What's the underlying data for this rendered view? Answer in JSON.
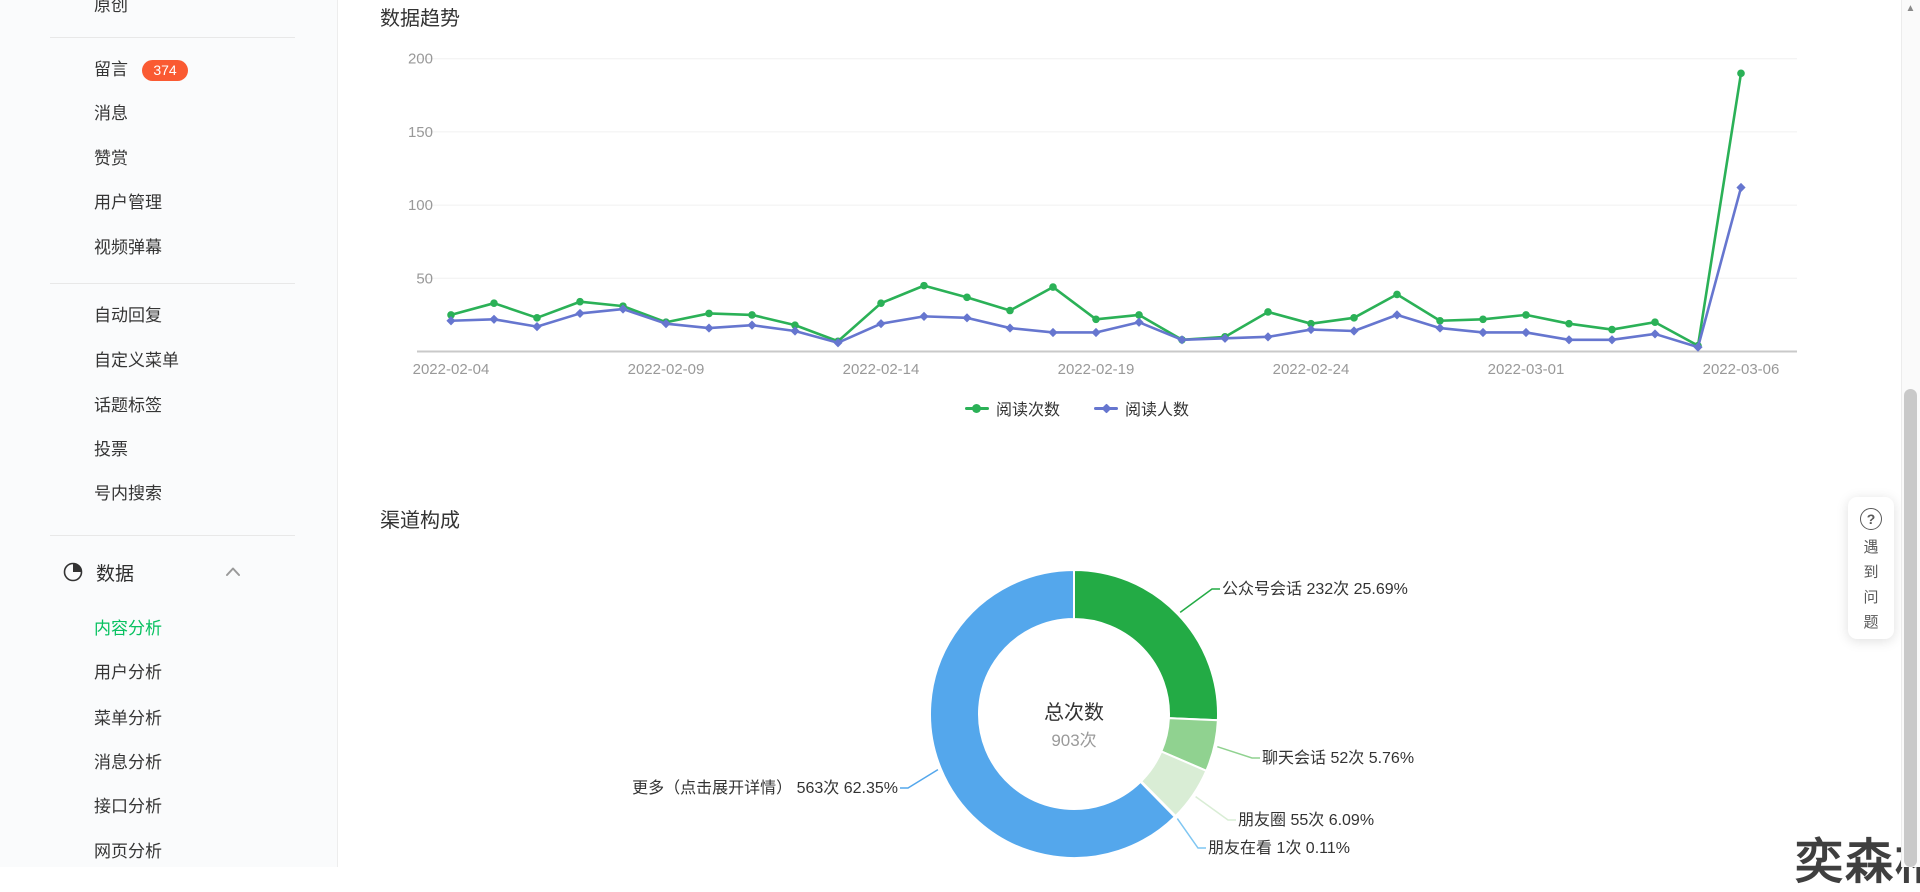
{
  "sidebar": {
    "active_color": "#07C160",
    "badge_color": "#FA5A32",
    "groups": [
      {
        "items": [
          {
            "name": "original",
            "label": "原创"
          }
        ]
      },
      {
        "items": [
          {
            "name": "comments",
            "label": "留言",
            "badge": "374"
          },
          {
            "name": "messages",
            "label": "消息"
          },
          {
            "name": "appreciation",
            "label": "赞赏"
          },
          {
            "name": "user-management",
            "label": "用户管理"
          },
          {
            "name": "video-danmu",
            "label": "视频弹幕"
          }
        ]
      },
      {
        "items": [
          {
            "name": "auto-reply",
            "label": "自动回复"
          },
          {
            "name": "custom-menu",
            "label": "自定义菜单"
          },
          {
            "name": "topic-tags",
            "label": "话题标签"
          },
          {
            "name": "vote",
            "label": "投票"
          },
          {
            "name": "in-account-search",
            "label": "号内搜索"
          }
        ]
      },
      {
        "section": {
          "name": "data-section",
          "label": "数据",
          "icon": "pie-chart-icon",
          "chevron": "chevron-up-icon"
        },
        "items": [
          {
            "name": "content-analysis",
            "label": "内容分析",
            "active": true
          },
          {
            "name": "user-analysis",
            "label": "用户分析"
          },
          {
            "name": "menu-analysis",
            "label": "菜单分析"
          },
          {
            "name": "message-analysis",
            "label": "消息分析"
          },
          {
            "name": "api-analysis",
            "label": "接口分析"
          },
          {
            "name": "webpage-analysis",
            "label": "网页分析"
          }
        ]
      }
    ]
  },
  "trend": {
    "title": "数据趋势",
    "legend": [
      {
        "label": "阅读次数",
        "color": "#2BB157",
        "marker": "circle"
      },
      {
        "label": "阅读人数",
        "color": "#6676CF",
        "marker": "diamond"
      }
    ]
  },
  "channel": {
    "title": "渠道构成",
    "center_label": "总次数",
    "center_value": "903次"
  },
  "help_widget": {
    "icon": "question-mark-icon",
    "text": "遇到问题"
  },
  "scrollbar": {
    "up_arrow": "▲"
  },
  "watermark": "奕森格",
  "chart_data": [
    {
      "type": "line",
      "title": "数据趋势",
      "x": [
        "2022-02-04",
        "2022-02-05",
        "2022-02-06",
        "2022-02-07",
        "2022-02-08",
        "2022-02-09",
        "2022-02-10",
        "2022-02-11",
        "2022-02-12",
        "2022-02-13",
        "2022-02-14",
        "2022-02-15",
        "2022-02-16",
        "2022-02-17",
        "2022-02-18",
        "2022-02-19",
        "2022-02-20",
        "2022-02-21",
        "2022-02-22",
        "2022-02-23",
        "2022-02-24",
        "2022-02-25",
        "2022-02-26",
        "2022-02-27",
        "2022-02-28",
        "2022-03-01",
        "2022-03-02",
        "2022-03-03",
        "2022-03-04",
        "2022-03-05",
        "2022-03-06"
      ],
      "x_tick_labels": [
        "2022-02-04",
        "2022-02-09",
        "2022-02-14",
        "2022-02-19",
        "2022-02-24",
        "2022-03-01",
        "2022-03-06"
      ],
      "series": [
        {
          "name": "阅读次数",
          "color": "#2BB157",
          "marker": "circle",
          "values": [
            25,
            33,
            23,
            34,
            31,
            20,
            26,
            25,
            18,
            7,
            33,
            45,
            37,
            28,
            44,
            22,
            25,
            8,
            10,
            27,
            19,
            23,
            39,
            21,
            22,
            25,
            19,
            15,
            20,
            4,
            190
          ]
        },
        {
          "name": "阅读人数",
          "color": "#6676CF",
          "marker": "diamond",
          "values": [
            21,
            22,
            17,
            26,
            29,
            19,
            16,
            18,
            14,
            6,
            19,
            24,
            23,
            16,
            13,
            13,
            20,
            8,
            9,
            10,
            15,
            14,
            25,
            16,
            13,
            13,
            8,
            8,
            12,
            3,
            112
          ]
        }
      ],
      "ylim": [
        0,
        200
      ],
      "yticks": [
        50,
        100,
        150,
        200
      ],
      "grid": "horizontal",
      "legend_position": "bottom"
    },
    {
      "type": "pie",
      "title": "渠道构成",
      "center": {
        "label": "总次数",
        "value": "903次"
      },
      "slices": [
        {
          "name": "公众号会话",
          "count": 232,
          "unit": "次",
          "pct": 25.69,
          "color": "#23AB45",
          "label": "公众号会话 232次 25.69%"
        },
        {
          "name": "聊天会话",
          "count": 52,
          "unit": "次",
          "pct": 5.76,
          "color": "#90D290",
          "label": "聊天会话 52次 5.76%"
        },
        {
          "name": "朋友圈",
          "count": 55,
          "unit": "次",
          "pct": 6.09,
          "color": "#D9EDD5",
          "label": "朋友圈 55次 6.09%"
        },
        {
          "name": "朋友在看",
          "count": 1,
          "unit": "次",
          "pct": 0.11,
          "color": "#7FC6F2",
          "label": "朋友在看 1次 0.11%"
        },
        {
          "name": "更多（点击展开详情）",
          "count": 563,
          "unit": "次",
          "pct": 62.35,
          "color": "#54A7EC",
          "label": "更多（点击展开详情） 563次 62.35%"
        }
      ]
    }
  ]
}
